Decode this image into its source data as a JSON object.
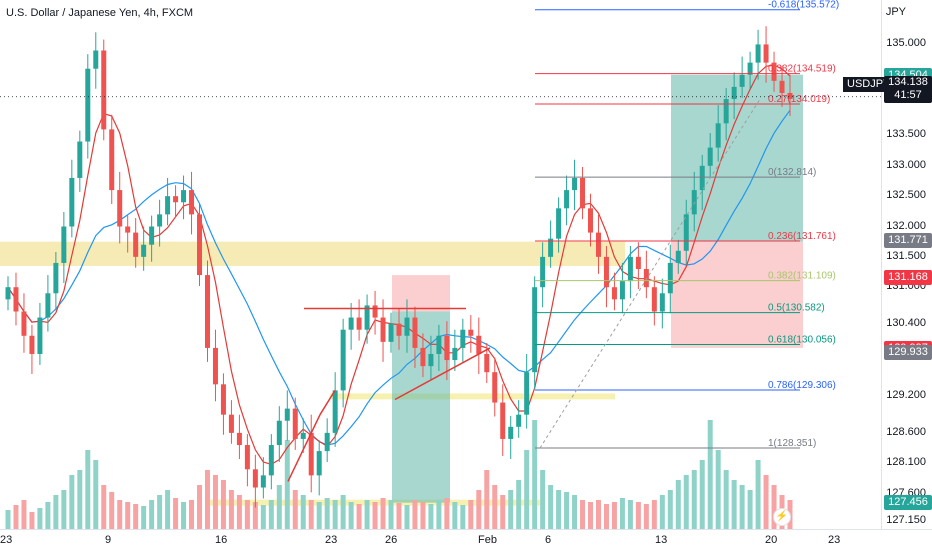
{
  "header": {
    "title": "U.S. Dollar / Japanese Yen, 4h, FXCM"
  },
  "price_scale": {
    "unit": "JPY",
    "ticks": [
      "135.000",
      "134.500",
      "133.500",
      "133.000",
      "132.500",
      "132.000",
      "131.500",
      "131.000",
      "130.400",
      "129.200",
      "128.600",
      "128.100",
      "127.600",
      "127.150"
    ],
    "boxes": [
      {
        "value": "134.504",
        "color": "#26a69a"
      },
      {
        "value": "131.771",
        "color": "#787b86"
      },
      {
        "value": "131.168",
        "color": "#f23645"
      },
      {
        "value": "129.997",
        "color": "#f23645"
      },
      {
        "value": "129.933",
        "color": "#787b86"
      },
      {
        "value": "127.456",
        "color": "#26a69a"
      }
    ],
    "symbol": "USDJPY",
    "current_price": "134.138",
    "countdown": "41:57"
  },
  "time_scale": {
    "ticks": [
      "23",
      "9",
      "16",
      "23",
      "26",
      "Feb",
      "6",
      "13",
      "20",
      "23"
    ]
  },
  "fib_labels": [
    {
      "text": "-0.618(135.572)",
      "price": 135.572,
      "color": "#2962ff"
    },
    {
      "text": "0.382(134.519)",
      "price": 134.519,
      "color": "#f23645"
    },
    {
      "text": "0.27(134.019)",
      "price": 134.019,
      "color": "#f23645"
    },
    {
      "text": "0(132.814)",
      "price": 132.814,
      "color": "#787b86"
    },
    {
      "text": "0.236(131.761)",
      "price": 131.761,
      "color": "#f23645"
    },
    {
      "text": "0.382(131.109)",
      "price": 131.109,
      "color": "#a8c66c"
    },
    {
      "text": "0.5(130.582)",
      "price": 130.582,
      "color": "#089981"
    },
    {
      "text": "0.618(130.056)",
      "price": 130.056,
      "color": "#089981"
    },
    {
      "text": "0.786(129.306)",
      "price": 129.306,
      "color": "#2962ff"
    },
    {
      "text": "1(128.351)",
      "price": 128.351,
      "color": "#787b86"
    }
  ],
  "chart_data": {
    "type": "candlestick",
    "title": "U.S. Dollar / Japanese Yen, 4h, FXCM",
    "symbol": "USDJPY",
    "unit": "JPY",
    "ylim": [
      127.0,
      135.6
    ],
    "x_ticks": [
      "23",
      "9",
      "16",
      "23",
      "26",
      "Feb",
      "6",
      "13",
      "20",
      "23"
    ],
    "y_ticks": [
      135.0,
      134.5,
      133.5,
      133.0,
      132.5,
      132.0,
      131.5,
      131.0,
      130.4,
      129.2,
      128.6,
      128.1,
      127.6,
      127.15
    ],
    "close_series_approx": [
      131.0,
      130.6,
      130.2,
      129.9,
      130.5,
      130.9,
      131.4,
      132.0,
      132.8,
      133.4,
      134.6,
      134.9,
      133.6,
      132.6,
      132.0,
      131.9,
      131.5,
      131.7,
      132.0,
      132.2,
      132.5,
      132.4,
      132.6,
      132.2,
      131.2,
      130.0,
      129.4,
      128.9,
      128.6,
      128.4,
      128.0,
      127.7,
      127.9,
      128.4,
      128.8,
      129.0,
      128.5,
      128.6,
      127.9,
      128.3,
      128.6,
      129.3,
      130.3,
      130.5,
      130.3,
      130.7,
      130.5,
      130.1,
      130.4,
      130.2,
      130.5,
      130.0,
      129.7,
      129.9,
      130.2,
      129.8,
      130.0,
      130.3,
      130.2,
      129.9,
      129.6,
      129.1,
      128.5,
      128.7,
      128.9,
      129.6,
      131.0,
      131.5,
      131.8,
      132.3,
      132.6,
      132.8,
      132.3,
      131.9,
      131.5,
      131.0,
      130.8,
      131.1,
      131.5,
      131.3,
      131.0,
      130.6,
      130.9,
      131.4,
      131.6,
      132.2,
      132.6,
      133.0,
      133.3,
      133.7,
      134.1,
      134.3,
      134.5,
      134.7,
      135.0,
      134.7,
      134.4,
      134.2,
      134.1
    ],
    "volume_approx": [
      20,
      25,
      30,
      18,
      22,
      28,
      35,
      40,
      55,
      60,
      80,
      70,
      45,
      38,
      30,
      28,
      26,
      24,
      30,
      35,
      40,
      32,
      28,
      30,
      45,
      60,
      55,
      50,
      40,
      35,
      30,
      28,
      25,
      30,
      45,
      90,
      40,
      35,
      30,
      28,
      32,
      30,
      35,
      28,
      26,
      30,
      28,
      32,
      30,
      27,
      25,
      30,
      28,
      26,
      30,
      32,
      28,
      25,
      30,
      40,
      60,
      45,
      35,
      40,
      50,
      80,
      110,
      60,
      45,
      40,
      38,
      35,
      30,
      28,
      30,
      26,
      28,
      32,
      30,
      28,
      26,
      30,
      35,
      40,
      50,
      55,
      60,
      70,
      110,
      80,
      60,
      50,
      45,
      40,
      70,
      55,
      45,
      35,
      30
    ],
    "grid": false,
    "legend": "none",
    "annotations": {
      "horizontal_zone": {
        "from": 131.35,
        "to": 131.75,
        "color": "#f5e6a3"
      },
      "fib_levels": [
        135.572,
        134.519,
        134.019,
        132.814,
        131.761,
        131.109,
        130.582,
        130.056,
        129.306,
        128.351
      ],
      "long_position_box": {
        "target": 134.5,
        "entry": 131.75,
        "stop": 130.0
      },
      "short_position_box": {
        "entry": 130.6,
        "target": 127.45,
        "stop": 131.2
      }
    }
  }
}
